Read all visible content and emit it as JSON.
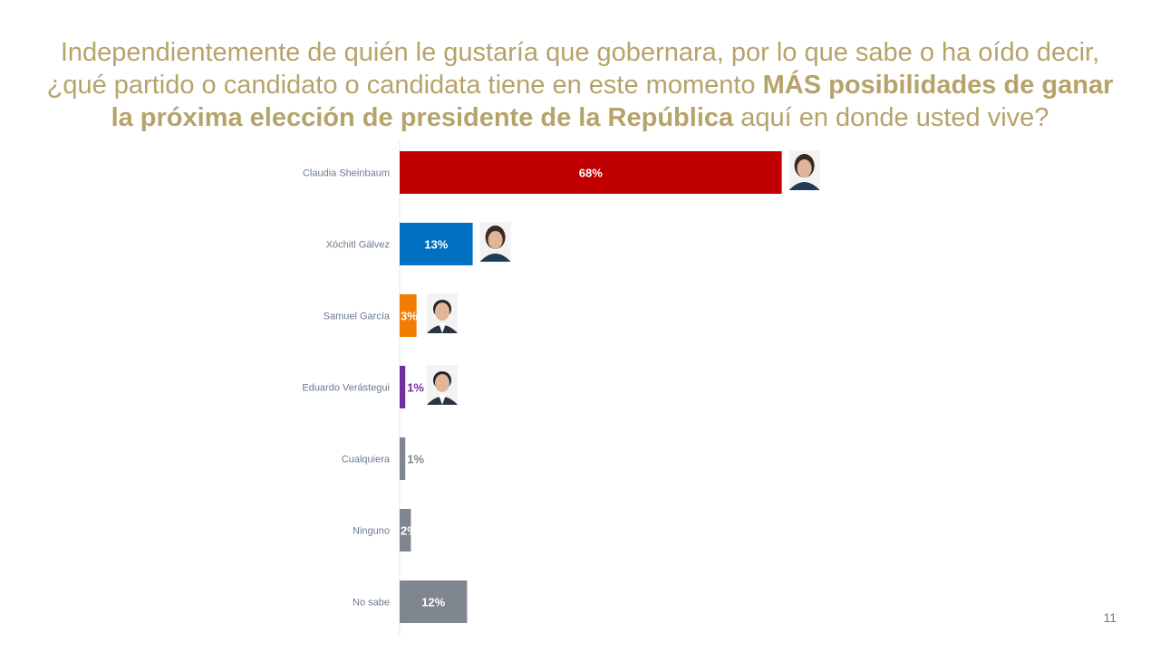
{
  "title": {
    "part1": "Independientemente de quién le gustaría que gobernara, por lo que sabe o ha oído decir, ¿qué partido o candidato o candidata tiene en este momento ",
    "bold1": "MÁS posibilidades de ganar la próxima elección de presidente de la República",
    "part2": " aquí en donde usted vive?"
  },
  "page_number": "11",
  "chart_data": {
    "type": "bar",
    "orientation": "horizontal",
    "categories": [
      "Claudia Sheinbaum",
      "Xóchitl Gálvez",
      "Samuel García",
      "Eduardo Verástegui",
      "Cualquiera",
      "Ninguno",
      "No sabe"
    ],
    "values": [
      68,
      13,
      3,
      1,
      1,
      2,
      12
    ],
    "value_labels": [
      "68%",
      "13%",
      "3%",
      "1%",
      "1%",
      "2%",
      "12%"
    ],
    "colors": [
      "#c00000",
      "#0070c0",
      "#f07c00",
      "#7030a0",
      "#7f868f",
      "#7f868f",
      "#7f868f"
    ],
    "photos": [
      "woman-portrait",
      "woman-portrait",
      "man-portrait",
      "man-portrait",
      null,
      null,
      null
    ],
    "xlim": [
      0,
      100
    ],
    "grid": false,
    "legend": "none"
  }
}
